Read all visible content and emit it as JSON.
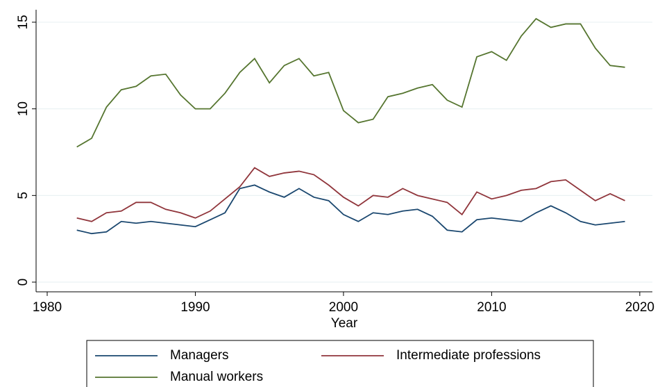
{
  "chart_data": {
    "type": "line",
    "x_label": "Year",
    "x": [
      1982,
      1983,
      1984,
      1985,
      1986,
      1987,
      1988,
      1989,
      1990,
      1991,
      1992,
      1993,
      1994,
      1995,
      1996,
      1997,
      1998,
      1999,
      2000,
      2001,
      2002,
      2003,
      2004,
      2005,
      2006,
      2007,
      2008,
      2009,
      2010,
      2011,
      2012,
      2013,
      2014,
      2015,
      2016,
      2017,
      2018,
      2019
    ],
    "series": [
      {
        "name": "Managers",
        "color": "#1a476f",
        "values": [
          3.0,
          2.8,
          2.9,
          3.5,
          3.4,
          3.5,
          3.4,
          3.3,
          3.2,
          3.6,
          4.0,
          5.4,
          5.6,
          5.2,
          4.9,
          5.4,
          4.9,
          4.7,
          3.9,
          3.5,
          4.0,
          3.9,
          4.1,
          4.2,
          3.8,
          3.0,
          2.9,
          3.6,
          3.7,
          3.6,
          3.5,
          4.0,
          4.4,
          4.0,
          3.5,
          3.3,
          3.4,
          3.5
        ]
      },
      {
        "name": "Intermediate professions",
        "color": "#90353b",
        "values": [
          3.7,
          3.5,
          4.0,
          4.1,
          4.6,
          4.6,
          4.2,
          4.0,
          3.7,
          4.1,
          4.8,
          5.5,
          6.6,
          6.1,
          6.3,
          6.4,
          6.2,
          5.6,
          4.9,
          4.4,
          5.0,
          4.9,
          5.4,
          5.0,
          4.8,
          4.6,
          3.9,
          5.2,
          4.8,
          5.0,
          5.3,
          5.4,
          5.8,
          5.9,
          5.3,
          4.7,
          5.1,
          4.7
        ]
      },
      {
        "name": "Manual workers",
        "color": "#55752f",
        "values": [
          7.8,
          8.3,
          10.1,
          11.1,
          11.3,
          11.9,
          12.0,
          10.8,
          10.0,
          10.0,
          10.9,
          12.1,
          12.9,
          11.5,
          12.5,
          12.9,
          11.9,
          12.1,
          9.9,
          9.2,
          9.4,
          10.7,
          10.9,
          11.2,
          11.4,
          10.5,
          10.1,
          13.0,
          13.3,
          12.8,
          14.2,
          15.2,
          14.7,
          14.9,
          14.9,
          13.5,
          12.5,
          12.4
        ]
      }
    ],
    "xlim": [
      1979.25,
      2020.85
    ],
    "xticks": [
      1980,
      1990,
      2000,
      2010,
      2020
    ],
    "ylim": [
      -0.56,
      15.72
    ],
    "yticks": [
      0,
      5,
      10,
      15
    ],
    "grid": true
  }
}
